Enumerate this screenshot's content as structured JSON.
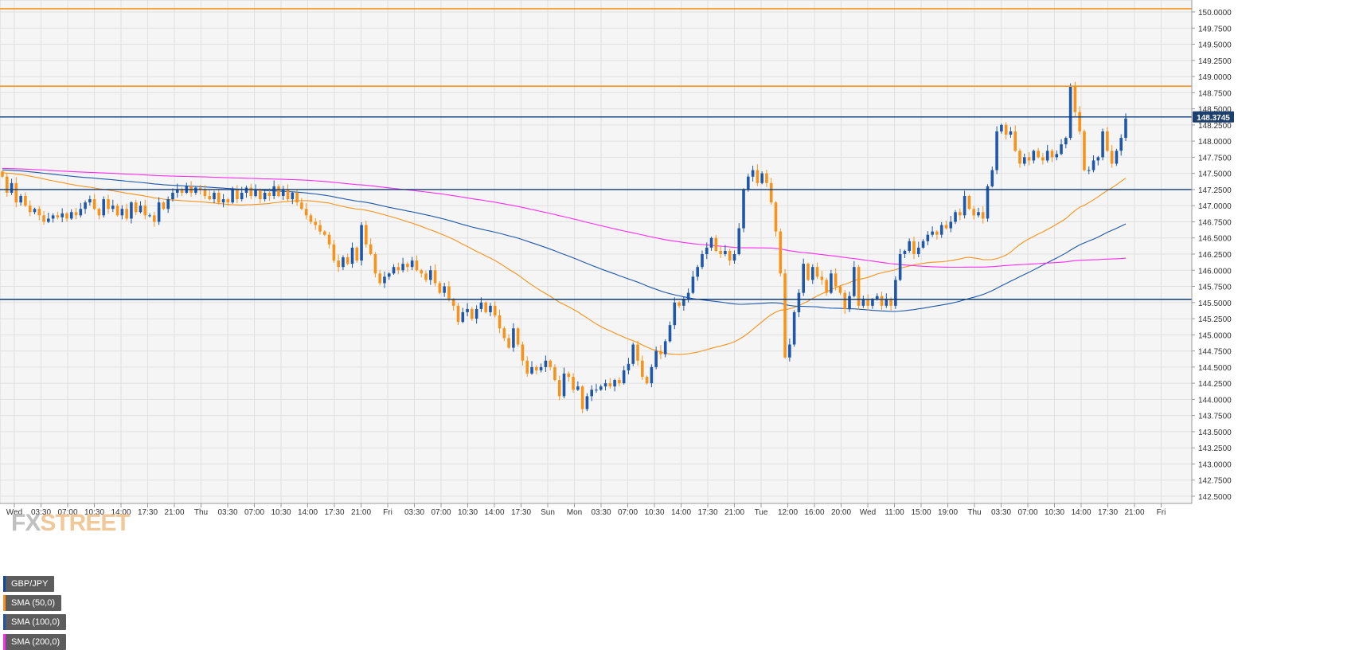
{
  "chart_data": {
    "type": "candlestick",
    "title": "GBP/JPY",
    "legend": {
      "placement": "top-left",
      "items": [
        {
          "name": "GBP/JPY",
          "color": "#0d4aa0"
        },
        {
          "name": "SMA (50,0)",
          "color": "#f7931a"
        },
        {
          "name": "SMA (100,0)",
          "color": "#1f57a8"
        },
        {
          "name": "SMA (200,0)",
          "color": "#ff2bf0"
        }
      ]
    },
    "ylim": [
      142.5,
      150.0
    ],
    "y_ticks": [
      "142.5000",
      "142.7500",
      "143.0000",
      "143.2500",
      "143.5000",
      "143.7500",
      "144.0000",
      "144.2500",
      "144.5000",
      "144.7500",
      "145.0000",
      "145.2500",
      "145.5000",
      "145.7500",
      "146.0000",
      "146.2500",
      "146.5000",
      "146.7500",
      "147.0000",
      "147.2500",
      "147.5000",
      "147.7500",
      "148.0000",
      "148.2500",
      "148.5000",
      "148.7500",
      "149.0000",
      "149.2500",
      "149.5000",
      "149.7500",
      "150.0000"
    ],
    "x_ticks": [
      "Wed",
      "03:30",
      "07:00",
      "10:30",
      "14:00",
      "17:30",
      "21:00",
      "Thu",
      "03:30",
      "07:00",
      "10:30",
      "14:00",
      "17:30",
      "21:00",
      "Fri",
      "03:30",
      "07:00",
      "10:30",
      "14:00",
      "17:30",
      "Sun",
      "Mon",
      "03:30",
      "07:00",
      "10:30",
      "14:00",
      "17:30",
      "21:00",
      "Tue",
      "12:00",
      "16:00",
      "20:00",
      "Wed",
      "11:00",
      "15:00",
      "19:00",
      "Thu",
      "03:30",
      "07:00",
      "10:30",
      "14:00",
      "17:30",
      "21:00",
      "Fri"
    ],
    "current_price": "148.3745",
    "grid": true,
    "colors": {
      "up": "#1f57a8",
      "down": "#f7931a",
      "background": "#f5f5f5",
      "grid": "#e0e0e0",
      "level": "#0d3a7a",
      "resistance": "#f7931a"
    },
    "horizontal_levels": {
      "resistance": [
        150.05,
        148.85
      ],
      "support": [
        148.3745,
        147.25,
        145.55
      ]
    },
    "close": [
      147.45,
      147.2,
      147.35,
      147.05,
      147.15,
      147.0,
      146.9,
      146.95,
      146.85,
      146.75,
      146.8,
      146.85,
      146.82,
      146.88,
      146.8,
      146.9,
      146.85,
      146.95,
      147.05,
      147.1,
      146.95,
      146.85,
      147.1,
      146.95,
      147.0,
      146.85,
      146.95,
      146.8,
      147.05,
      146.9,
      147.0,
      146.85,
      146.85,
      146.75,
      147.05,
      146.95,
      147.1,
      147.2,
      147.25,
      147.2,
      147.3,
      147.2,
      147.28,
      147.25,
      147.15,
      147.1,
      147.2,
      147.05,
      147.1,
      147.05,
      147.25,
      147.1,
      147.2,
      147.28,
      147.15,
      147.25,
      147.1,
      147.2,
      147.15,
      147.3,
      147.15,
      147.25,
      147.1,
      147.2,
      147.05,
      146.95,
      146.85,
      146.75,
      146.7,
      146.6,
      146.55,
      146.4,
      146.15,
      146.05,
      146.2,
      146.1,
      146.35,
      146.15,
      146.7,
      146.4,
      146.25,
      145.95,
      145.8,
      145.9,
      145.95,
      146.05,
      146.0,
      146.1,
      146.05,
      146.15,
      146.0,
      145.95,
      145.85,
      146.0,
      145.8,
      145.65,
      145.75,
      145.55,
      145.45,
      145.2,
      145.35,
      145.4,
      145.25,
      145.4,
      145.5,
      145.35,
      145.45,
      145.3,
      145.1,
      144.95,
      144.8,
      145.1,
      144.85,
      144.6,
      144.4,
      144.5,
      144.45,
      144.5,
      144.6,
      144.5,
      144.3,
      144.05,
      144.4,
      144.35,
      144.15,
      144.2,
      143.85,
      144.05,
      144.15,
      144.15,
      144.2,
      144.25,
      144.2,
      144.3,
      144.25,
      144.45,
      144.55,
      144.85,
      144.6,
      144.35,
      144.25,
      144.5,
      144.75,
      144.7,
      144.9,
      145.15,
      145.5,
      145.45,
      145.55,
      145.65,
      145.9,
      146.05,
      146.25,
      146.35,
      146.5,
      146.3,
      146.25,
      146.3,
      146.15,
      146.25,
      146.65,
      147.25,
      147.45,
      147.55,
      147.35,
      147.5,
      147.35,
      147.05,
      146.6,
      145.95,
      144.65,
      144.85,
      145.35,
      145.65,
      146.1,
      145.85,
      146.05,
      145.9,
      145.85,
      145.65,
      145.95,
      145.75,
      145.65,
      145.4,
      145.6,
      146.05,
      145.45,
      145.55,
      145.45,
      145.55,
      145.6,
      145.45,
      145.55,
      145.45,
      145.85,
      146.25,
      146.3,
      146.45,
      146.25,
      146.35,
      146.45,
      146.55,
      146.6,
      146.55,
      146.7,
      146.65,
      146.75,
      146.9,
      146.85,
      147.15,
      146.95,
      146.85,
      146.9,
      146.8,
      147.3,
      147.55,
      148.15,
      148.25,
      148.1,
      148.15,
      147.85,
      147.65,
      147.75,
      147.7,
      147.85,
      147.75,
      147.7,
      147.85,
      147.75,
      147.8,
      147.95,
      148.05,
      148.85,
      148.45,
      148.15,
      147.55,
      147.55,
      147.7,
      147.75,
      148.15,
      147.85,
      147.65,
      147.85,
      148.05,
      148.35
    ]
  }
}
